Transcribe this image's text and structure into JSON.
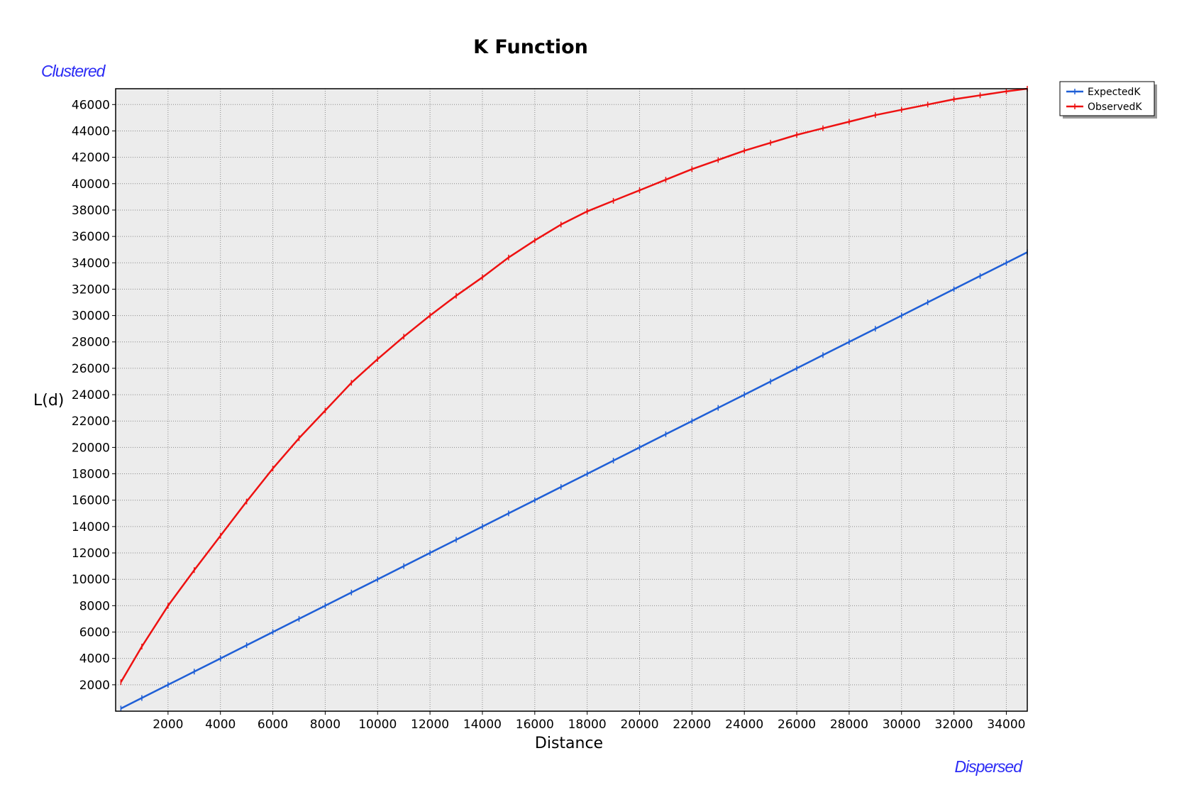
{
  "chart_data": {
    "type": "line",
    "title": "K Function",
    "xlabel": "Distance",
    "ylabel": "L(d)",
    "corner_top_left": "Clustered",
    "corner_bottom_right": "Dispersed",
    "xlim": [
      0,
      34800
    ],
    "ylim": [
      0,
      47200
    ],
    "x_ticks": [
      2000,
      4000,
      6000,
      8000,
      10000,
      12000,
      14000,
      16000,
      18000,
      20000,
      22000,
      24000,
      26000,
      28000,
      30000,
      32000,
      34000
    ],
    "y_ticks": [
      2000,
      4000,
      6000,
      8000,
      10000,
      12000,
      14000,
      16000,
      18000,
      20000,
      22000,
      24000,
      26000,
      28000,
      30000,
      32000,
      34000,
      36000,
      38000,
      40000,
      42000,
      44000,
      46000
    ],
    "grid": true,
    "legend": "top-right",
    "x": [
      200,
      1000,
      2000,
      3000,
      4000,
      5000,
      6000,
      7000,
      8000,
      9000,
      10000,
      11000,
      12000,
      13000,
      14000,
      15000,
      16000,
      17000,
      18000,
      19000,
      20000,
      21000,
      22000,
      23000,
      24000,
      25000,
      26000,
      27000,
      28000,
      29000,
      30000,
      31000,
      32000,
      33000,
      34000,
      34800
    ],
    "series": [
      {
        "name": "ExpectedK",
        "color": "#1f5fd6",
        "values": [
          200,
          1000,
          2000,
          3000,
          4000,
          5000,
          6000,
          7000,
          8000,
          9000,
          10000,
          11000,
          12000,
          13000,
          14000,
          15000,
          16000,
          17000,
          18000,
          19000,
          20000,
          21000,
          22000,
          23000,
          24000,
          25000,
          26000,
          27000,
          28000,
          29000,
          30000,
          31000,
          32000,
          33000,
          34000,
          34800
        ]
      },
      {
        "name": "ObservedK",
        "color": "#ee1111",
        "values": [
          2200,
          4900,
          8000,
          10700,
          13300,
          15900,
          18400,
          20700,
          22800,
          24900,
          26700,
          28400,
          30000,
          31500,
          32900,
          34400,
          35700,
          36900,
          37900,
          38700,
          39500,
          40300,
          41100,
          41800,
          42500,
          43100,
          43700,
          44200,
          44700,
          45200,
          45600,
          46000,
          46400,
          46700,
          47000,
          47200
        ]
      }
    ]
  }
}
